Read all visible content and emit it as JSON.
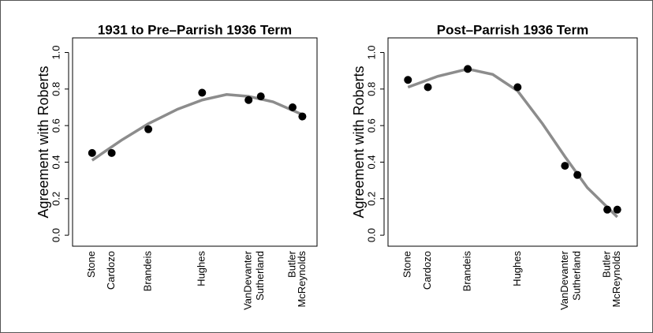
{
  "chart_data": [
    {
      "type": "scatter",
      "title": "1931 to Pre–Parrish 1936 Term",
      "y_label": "Agreement with Roberts",
      "x": [
        0.08,
        0.16,
        0.31,
        0.53,
        0.72,
        0.77,
        0.9,
        0.94
      ],
      "values": [
        0.45,
        0.45,
        0.58,
        0.78,
        0.74,
        0.76,
        0.7,
        0.65
      ],
      "color": "#000000",
      "curve": {
        "x": [
          0.08,
          0.2,
          0.31,
          0.43,
          0.53,
          0.63,
          0.72,
          0.82,
          0.94
        ],
        "values": [
          0.41,
          0.52,
          0.61,
          0.69,
          0.74,
          0.77,
          0.76,
          0.73,
          0.66
        ],
        "color": "#8c8c8c"
      },
      "xlim": [
        0,
        1
      ],
      "xticks": [
        {
          "value": 0.08,
          "label": "Stone"
        },
        {
          "value": 0.16,
          "label": "Cardozo"
        },
        {
          "value": 0.31,
          "label": "Brandeis"
        },
        {
          "value": 0.53,
          "label": "Hughes"
        },
        {
          "value": 0.72,
          "label": "VanDevanter"
        },
        {
          "value": 0.77,
          "label": "Sutherland"
        },
        {
          "value": 0.9,
          "label": "Butler"
        },
        {
          "value": 0.94,
          "label": "McReynolds"
        }
      ],
      "ylim": [
        -0.06,
        1.08
      ],
      "yticks": [
        {
          "value": 0,
          "label": "0.0"
        },
        {
          "value": 0.2,
          "label": "0.2"
        },
        {
          "value": 0.4,
          "label": "0.4"
        },
        {
          "value": 0.6,
          "label": "0.6"
        },
        {
          "value": 0.8,
          "label": "0.8"
        },
        {
          "value": 1,
          "label": "1.0"
        }
      ]
    },
    {
      "type": "scatter",
      "title": "Post–Parrish 1936 Term",
      "y_label": "Agreement with Roberts",
      "x": [
        0.08,
        0.16,
        0.32,
        0.52,
        0.71,
        0.76,
        0.88,
        0.92
      ],
      "values": [
        0.85,
        0.81,
        0.91,
        0.81,
        0.38,
        0.33,
        0.14,
        0.14
      ],
      "color": "#000000",
      "curve": {
        "x": [
          0.08,
          0.2,
          0.32,
          0.42,
          0.52,
          0.62,
          0.71,
          0.8,
          0.92
        ],
        "values": [
          0.81,
          0.87,
          0.91,
          0.88,
          0.79,
          0.61,
          0.43,
          0.26,
          0.1
        ],
        "color": "#8c8c8c"
      },
      "xlim": [
        0,
        1
      ],
      "xticks": [
        {
          "value": 0.08,
          "label": "Stone"
        },
        {
          "value": 0.16,
          "label": "Cardozo"
        },
        {
          "value": 0.32,
          "label": "Brandeis"
        },
        {
          "value": 0.52,
          "label": "Hughes"
        },
        {
          "value": 0.71,
          "label": "VanDevanter"
        },
        {
          "value": 0.76,
          "label": "Sutherland"
        },
        {
          "value": 0.88,
          "label": "Butler"
        },
        {
          "value": 0.92,
          "label": "McReynolds"
        }
      ],
      "ylim": [
        -0.06,
        1.08
      ],
      "yticks": [
        {
          "value": 0,
          "label": "0.0"
        },
        {
          "value": 0.2,
          "label": "0.2"
        },
        {
          "value": 0.4,
          "label": "0.4"
        },
        {
          "value": 0.6,
          "label": "0.6"
        },
        {
          "value": 0.8,
          "label": "0.8"
        },
        {
          "value": 1,
          "label": "1.0"
        }
      ]
    }
  ]
}
